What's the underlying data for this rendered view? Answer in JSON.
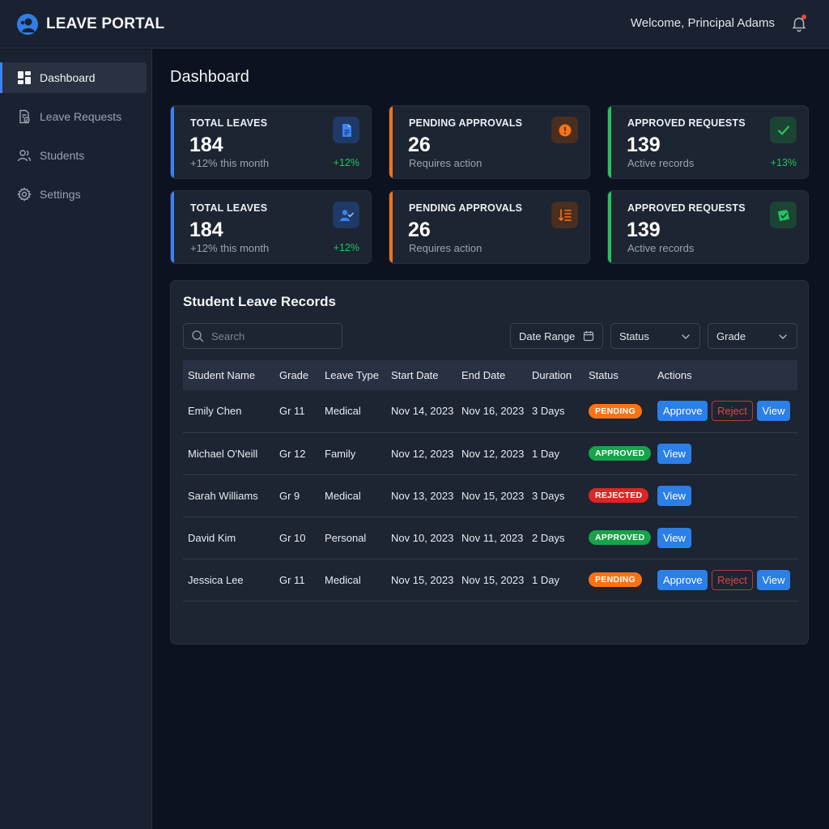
{
  "app": {
    "title": "LEAVE PORTAL",
    "welcome": "Welcome, Principal Adams",
    "icons": {
      "logo": "user-logo-icon",
      "notifications": "bell-icon"
    }
  },
  "sidebar": {
    "items": [
      {
        "label": "Dashboard",
        "icon": "dashboard-icon",
        "active": true
      },
      {
        "label": "Leave Requests",
        "icon": "document-check-icon",
        "active": false
      },
      {
        "label": "Students",
        "icon": "users-icon",
        "active": false
      },
      {
        "label": "Settings",
        "icon": "gear-icon",
        "active": false
      }
    ]
  },
  "main": {
    "title": "Dashboard"
  },
  "cards": [
    {
      "label": "TOTAL LEAVES",
      "value": "184",
      "sub": "+12% this month",
      "trend": "+12%",
      "icon": "document-icon",
      "accent": "#3b82f6"
    },
    {
      "label": "PENDING APPROVALS",
      "value": "26",
      "sub": "Requires action",
      "trend": "",
      "icon": "alert-icon",
      "accent": "#f97316"
    },
    {
      "label": "APPROVED REQUESTS",
      "value": "139",
      "sub": "Active records",
      "trend": "+13%",
      "icon": "check-icon",
      "accent": "#22c55e"
    },
    {
      "label": "TOTAL LEAVES",
      "value": "184",
      "sub": "+12% this month",
      "trend": "+12%",
      "icon": "user-check-icon",
      "accent": "#3b82f6"
    },
    {
      "label": "PENDING APPROVALS",
      "value": "26",
      "sub": "Requires action",
      "trend": "",
      "icon": "sort-list-icon",
      "accent": "#f97316"
    },
    {
      "label": "APPROVED REQUESTS",
      "value": "139",
      "sub": "Active records",
      "trend": "",
      "icon": "stamp-check-icon",
      "accent": "#22c55e"
    }
  ],
  "records": {
    "title": "Student Leave Records",
    "search_placeholder": "Search",
    "filters": {
      "date_range": "Date Range",
      "status": "Status",
      "grade": "Grade"
    },
    "columns": [
      "Student Name",
      "Grade",
      "Leave Type",
      "Start Date",
      "End Date",
      "Duration",
      "Status",
      "Actions"
    ],
    "actions": {
      "approve": "Approve",
      "reject": "Reject",
      "view": "View"
    },
    "rows": [
      {
        "name": "Emily Chen",
        "grade": "Gr 11",
        "type": "Medical",
        "start": "Nov 14, 2023",
        "end": "Nov 16, 2023",
        "duration": "3 Days",
        "status": "PENDING"
      },
      {
        "name": "Michael O'Neill",
        "grade": "Gr 12",
        "type": "Family",
        "start": "Nov 12, 2023",
        "end": "Nov 12, 2023",
        "duration": "1 Day",
        "status": "APPROVED"
      },
      {
        "name": "Sarah Williams",
        "grade": "Gr 9",
        "type": "Medical",
        "start": "Nov 13, 2023",
        "end": "Nov 15, 2023",
        "duration": "3 Days",
        "status": "REJECTED"
      },
      {
        "name": "David Kim",
        "grade": "Gr 10",
        "type": "Personal",
        "start": "Nov 10, 2023",
        "end": "Nov 11, 2023",
        "duration": "2 Days",
        "status": "APPROVED"
      },
      {
        "name": "Jessica Lee",
        "grade": "Gr 11",
        "type": "Medical",
        "start": "Nov 15, 2023",
        "end": "Nov 15, 2023",
        "duration": "1 Day",
        "status": "PENDING"
      }
    ]
  },
  "colors": {
    "primary": "#2b7fe6",
    "pending": "#f97316",
    "approved": "#16a34a",
    "rejected": "#dc2626",
    "background": "#0c1220",
    "surface": "#1d2432"
  }
}
